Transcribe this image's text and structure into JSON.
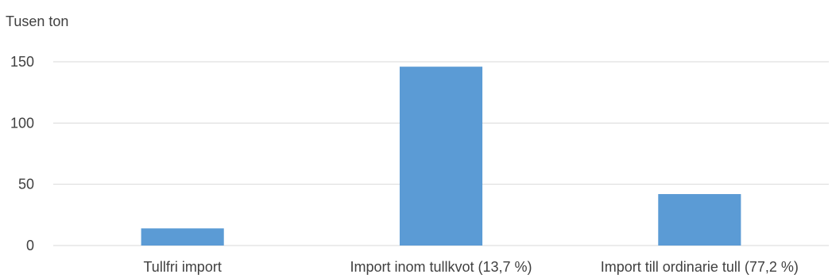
{
  "chart_data": {
    "type": "bar",
    "title": "",
    "unit_label": "Tusen ton",
    "xlabel": "",
    "ylabel": "",
    "categories": [
      "Tullfri import",
      "Import inom tullkvot (13,7 %)",
      "Import till ordinarie tull (77,2 %)"
    ],
    "values": [
      14,
      146,
      42
    ],
    "ylim": [
      0,
      150
    ],
    "yticks": [
      0,
      50,
      100,
      150
    ],
    "grid": true,
    "legend": "none",
    "colors": {
      "bar": "#5B9BD5",
      "grid": "#D9D9D9",
      "text": "#404040"
    }
  }
}
